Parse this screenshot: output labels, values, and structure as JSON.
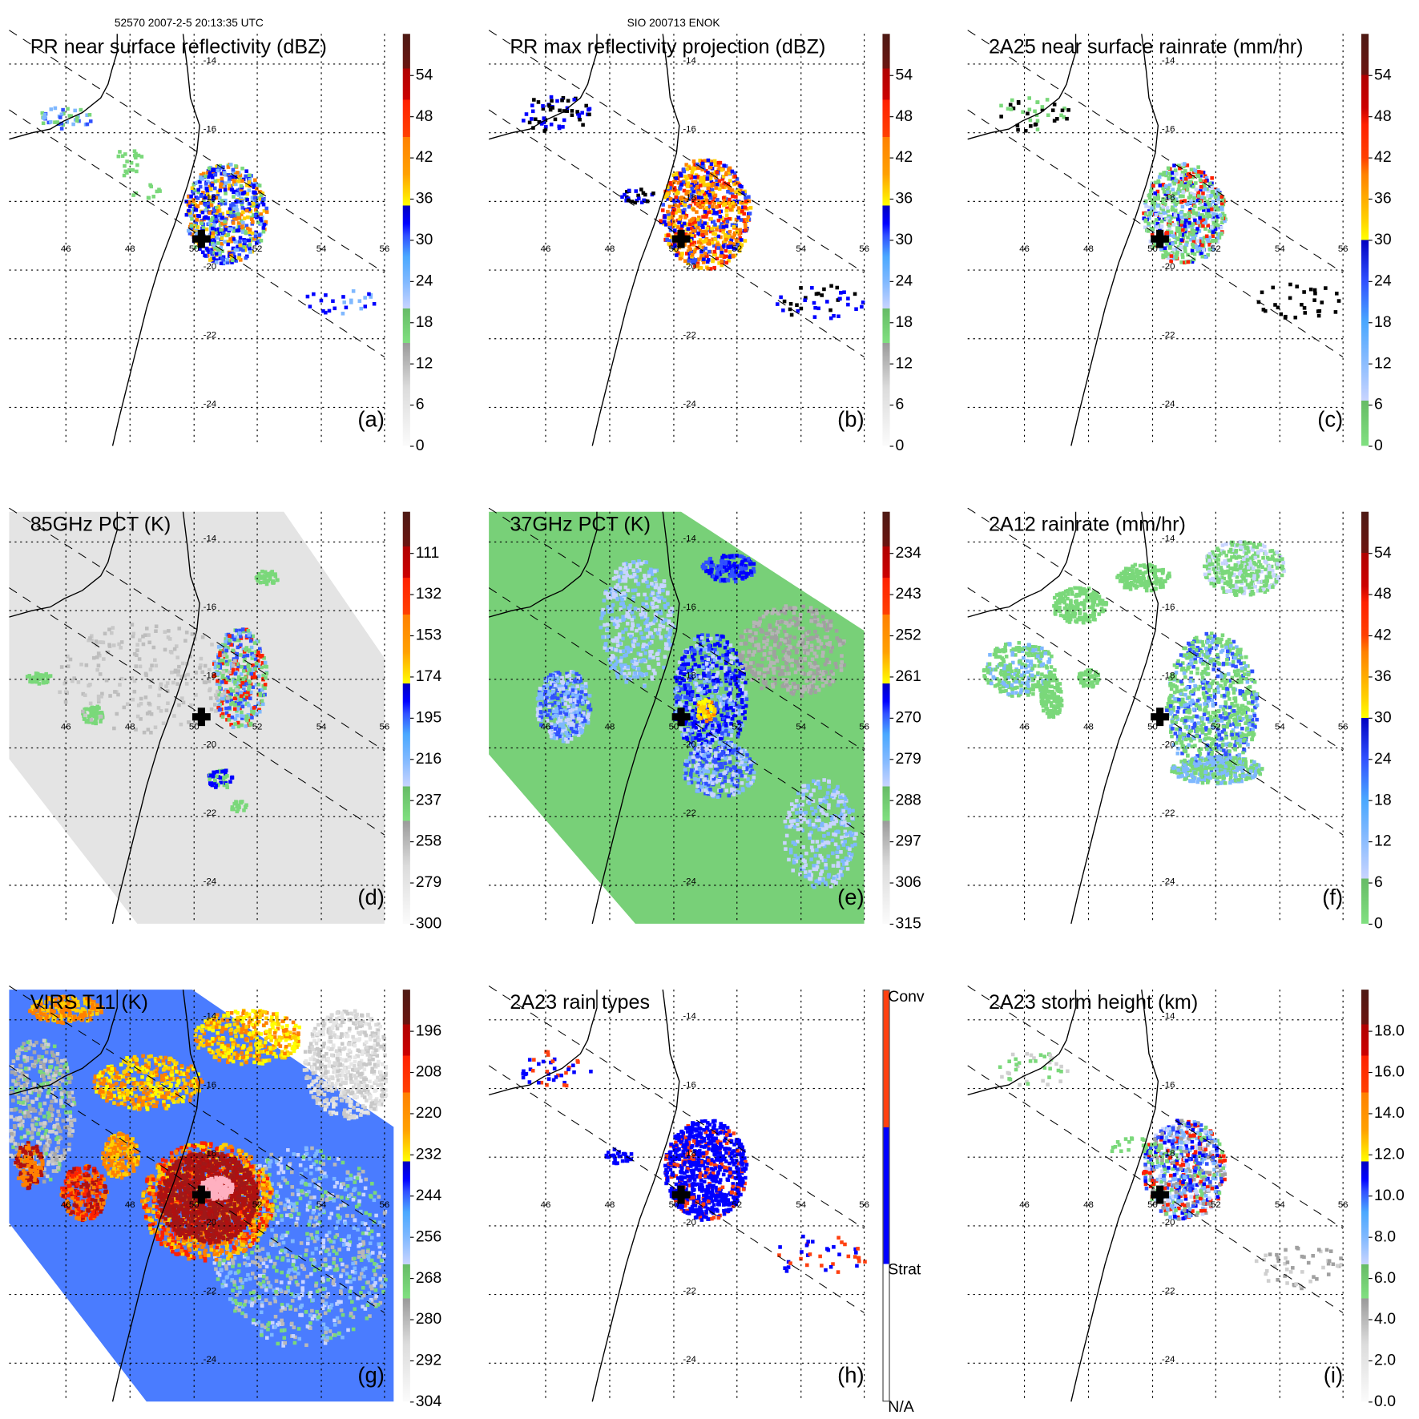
{
  "header": {
    "left": "52570 2007-2-5 20:13:35 UTC",
    "center": "SIO 200713 ENOK"
  },
  "lon_labels": [
    "46",
    "48",
    "50",
    "52",
    "54",
    "56"
  ],
  "lat_labels": [
    "-14",
    "-16",
    "-18",
    "-20",
    "-22",
    "-24"
  ],
  "panels": [
    {
      "id": "a",
      "title": "PR near surface reflectivity (dBZ)",
      "label": "(a)",
      "colorbar": [
        "0",
        "6",
        "12",
        "18",
        "24",
        "30",
        "36",
        "42",
        "48",
        "54"
      ]
    },
    {
      "id": "b",
      "title": "PR max reflectivity projection (dBZ)",
      "label": "(b)",
      "colorbar": [
        "0",
        "6",
        "12",
        "18",
        "24",
        "30",
        "36",
        "42",
        "48",
        "54"
      ]
    },
    {
      "id": "c",
      "title": "2A25 near surface rainrate (mm/hr)",
      "label": "(c)",
      "colorbar": [
        "0",
        "6",
        "12",
        "18",
        "24",
        "30",
        "36",
        "42",
        "48",
        "54"
      ]
    },
    {
      "id": "d",
      "title": "85GHz PCT (K)",
      "label": "(d)",
      "colorbar": [
        "300",
        "279",
        "258",
        "237",
        "216",
        "195",
        "174",
        "153",
        "132",
        "111"
      ]
    },
    {
      "id": "e",
      "title": "37GHz PCT (K)",
      "label": "(e)",
      "colorbar": [
        "315",
        "306",
        "297",
        "288",
        "279",
        "270",
        "261",
        "252",
        "243",
        "234"
      ]
    },
    {
      "id": "f",
      "title": "2A12 rainrate (mm/hr)",
      "label": "(f)",
      "colorbar": [
        "0",
        "6",
        "12",
        "18",
        "24",
        "30",
        "36",
        "42",
        "48",
        "54"
      ]
    },
    {
      "id": "g",
      "title": "VIRS T11 (K)",
      "label": "(g)",
      "colorbar": [
        "304",
        "292",
        "280",
        "268",
        "256",
        "244",
        "232",
        "220",
        "208",
        "196"
      ]
    },
    {
      "id": "h",
      "title": "2A23 rain types",
      "label": "(h)",
      "colorbar": [
        "N/A",
        "Strat",
        "Conv"
      ]
    },
    {
      "id": "i",
      "title": "2A23 storm height (km)",
      "label": "(i)",
      "colorbar": [
        "0.0",
        "2.0",
        "4.0",
        "6.0",
        "8.0",
        "10.0",
        "12.0",
        "14.0",
        "16.0",
        "18.0"
      ]
    }
  ],
  "colors": {
    "conv": "#ff4010",
    "strat": "#0000ff",
    "grid": "#000000"
  }
}
